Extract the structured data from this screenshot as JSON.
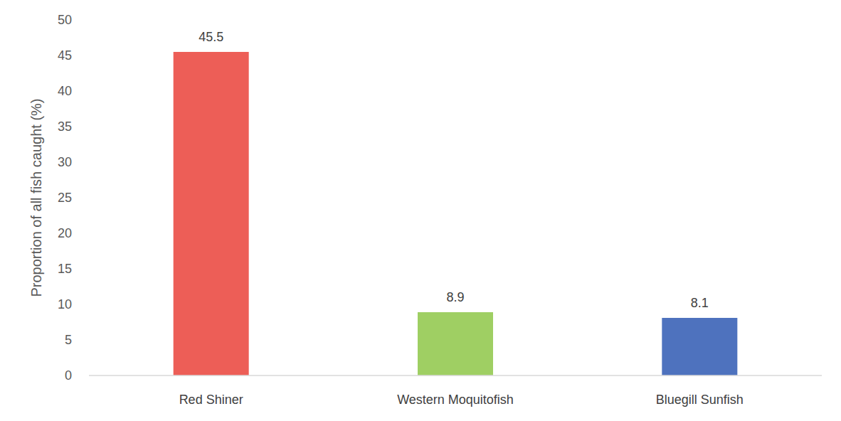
{
  "chart_data": {
    "type": "bar",
    "ylabel": "Proportion of all fish caught (%)",
    "categories": [
      "Red Shiner",
      "Western Moquitofish",
      "Bluegill Sunfish"
    ],
    "values": [
      45.5,
      8.9,
      8.1
    ],
    "colors": [
      "#ed5e57",
      "#9fcf63",
      "#4e72be"
    ],
    "ylim": [
      0,
      50
    ],
    "yticks": [
      0,
      5,
      10,
      15,
      20,
      25,
      30,
      35,
      40,
      45,
      50
    ],
    "grid": false,
    "data_labels": true
  }
}
